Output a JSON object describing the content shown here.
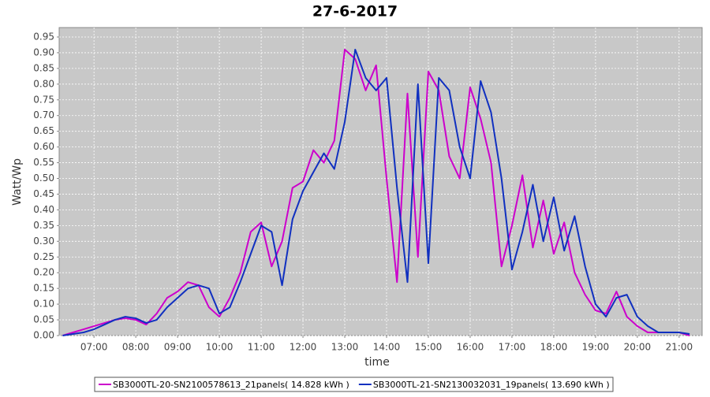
{
  "chart_data": {
    "type": "line",
    "title": "27-6-2017",
    "x_label": "time",
    "y_label": "Watt/Wp",
    "x": [
      375,
      390,
      405,
      420,
      435,
      450,
      465,
      480,
      495,
      510,
      525,
      540,
      555,
      570,
      585,
      600,
      615,
      630,
      645,
      660,
      675,
      690,
      705,
      720,
      735,
      750,
      765,
      780,
      795,
      810,
      825,
      840,
      855,
      870,
      885,
      900,
      915,
      930,
      945,
      960,
      975,
      990,
      1005,
      1020,
      1035,
      1050,
      1065,
      1080,
      1095,
      1110,
      1125,
      1140,
      1155,
      1170,
      1185,
      1200,
      1215,
      1230,
      1245,
      1260,
      1275
    ],
    "series": [
      {
        "name": "SB3000TL-20-SN2100578613_21panels( 14.828 kWh )",
        "color": "#cc00cc",
        "values": [
          0,
          0.01,
          0.02,
          0.03,
          0.04,
          0.05,
          0.055,
          0.05,
          0.035,
          0.07,
          0.12,
          0.14,
          0.17,
          0.16,
          0.09,
          0.06,
          0.12,
          0.2,
          0.33,
          0.36,
          0.22,
          0.3,
          0.47,
          0.49,
          0.59,
          0.55,
          0.62,
          0.91,
          0.88,
          0.78,
          0.86,
          0.5,
          0.17,
          0.77,
          0.25,
          0.84,
          0.78,
          0.57,
          0.5,
          0.79,
          0.69,
          0.55,
          0.22,
          0.35,
          0.51,
          0.28,
          0.43,
          0.26,
          0.36,
          0.2,
          0.13,
          0.08,
          0.07,
          0.14,
          0.06,
          0.03,
          0.01,
          0.01,
          0.01,
          0.01,
          0
        ]
      },
      {
        "name": "SB3000TL-21-SN2130032031_19panels( 13.690 kWh )",
        "color": "#1030c0",
        "values": [
          0,
          0.005,
          0.01,
          0.02,
          0.035,
          0.05,
          0.06,
          0.055,
          0.04,
          0.05,
          0.09,
          0.12,
          0.15,
          0.16,
          0.15,
          0.07,
          0.09,
          0.17,
          0.26,
          0.35,
          0.33,
          0.16,
          0.37,
          0.46,
          0.52,
          0.58,
          0.53,
          0.68,
          0.91,
          0.82,
          0.78,
          0.82,
          0.47,
          0.17,
          0.8,
          0.23,
          0.82,
          0.78,
          0.6,
          0.5,
          0.81,
          0.71,
          0.5,
          0.21,
          0.33,
          0.48,
          0.3,
          0.44,
          0.27,
          0.38,
          0.22,
          0.1,
          0.06,
          0.12,
          0.13,
          0.06,
          0.03,
          0.01,
          0.01,
          0.01,
          0.005
        ]
      }
    ],
    "xlim": [
      370,
      1293
    ],
    "xticks": [
      {
        "value": 420,
        "label": "07:00"
      },
      {
        "value": 480,
        "label": "08:00"
      },
      {
        "value": 540,
        "label": "09:00"
      },
      {
        "value": 600,
        "label": "10:00"
      },
      {
        "value": 660,
        "label": "11:00"
      },
      {
        "value": 720,
        "label": "12:00"
      },
      {
        "value": 780,
        "label": "13:00"
      },
      {
        "value": 840,
        "label": "14:00"
      },
      {
        "value": 900,
        "label": "15:00"
      },
      {
        "value": 960,
        "label": "16:00"
      },
      {
        "value": 1020,
        "label": "17:00"
      },
      {
        "value": 1080,
        "label": "18:00"
      },
      {
        "value": 1140,
        "label": "19:00"
      },
      {
        "value": 1200,
        "label": "20:00"
      },
      {
        "value": 1260,
        "label": "21:00"
      }
    ],
    "ylim": [
      0,
      0.98
    ],
    "yticks": [
      {
        "value": 0,
        "label": "0.00"
      },
      {
        "value": 0.05,
        "label": "0.05"
      },
      {
        "value": 0.1,
        "label": "0.10"
      },
      {
        "value": 0.15,
        "label": "0.15"
      },
      {
        "value": 0.2,
        "label": "0.20"
      },
      {
        "value": 0.25,
        "label": "0.25"
      },
      {
        "value": 0.3,
        "label": "0.30"
      },
      {
        "value": 0.35,
        "label": "0.35"
      },
      {
        "value": 0.4,
        "label": "0.40"
      },
      {
        "value": 0.45,
        "label": "0.45"
      },
      {
        "value": 0.5,
        "label": "0.50"
      },
      {
        "value": 0.55,
        "label": "0.55"
      },
      {
        "value": 0.6,
        "label": "0.60"
      },
      {
        "value": 0.65,
        "label": "0.65"
      },
      {
        "value": 0.7,
        "label": "0.70"
      },
      {
        "value": 0.75,
        "label": "0.75"
      },
      {
        "value": 0.8,
        "label": "0.80"
      },
      {
        "value": 0.85,
        "label": "0.85"
      },
      {
        "value": 0.9,
        "label": "0.90"
      },
      {
        "value": 0.95,
        "label": "0.95"
      }
    ],
    "grid": true
  }
}
